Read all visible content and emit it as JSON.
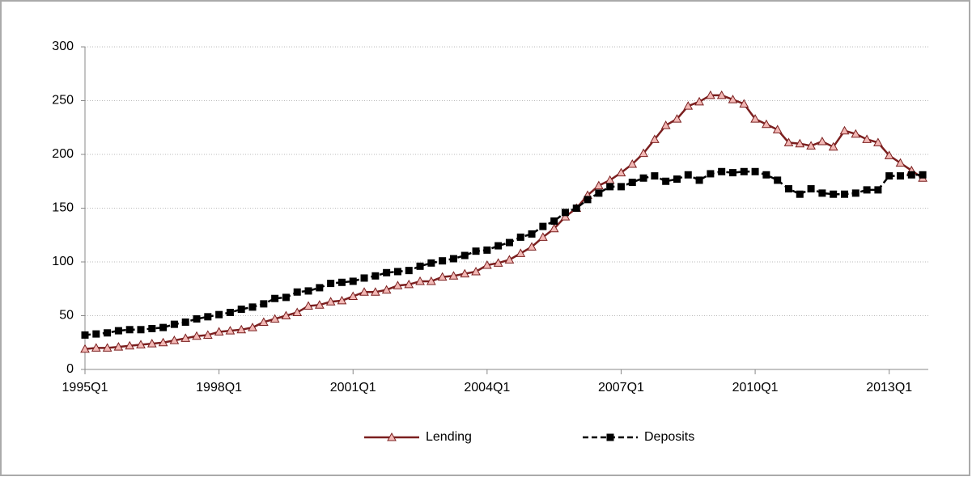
{
  "chart_data": {
    "type": "line",
    "categories": [
      "1995Q1",
      null,
      null,
      null,
      null,
      null,
      null,
      null,
      null,
      null,
      null,
      null,
      "1998Q1",
      null,
      null,
      null,
      null,
      null,
      null,
      null,
      null,
      null,
      null,
      null,
      "2001Q1",
      null,
      null,
      null,
      null,
      null,
      null,
      null,
      null,
      null,
      null,
      null,
      "2004Q1",
      null,
      null,
      null,
      null,
      null,
      null,
      null,
      null,
      null,
      null,
      null,
      "2007Q1",
      null,
      null,
      null,
      null,
      null,
      null,
      null,
      null,
      null,
      null,
      null,
      "2010Q1",
      null,
      null,
      null,
      null,
      null,
      null,
      null,
      null,
      null,
      null,
      null,
      "2013Q1",
      null,
      null,
      null
    ],
    "series": [
      {
        "name": "Lending",
        "color": "#7b1f1f",
        "marker": "triangle",
        "marker_fill": "#f2b8b5",
        "dashed": false,
        "values": [
          19,
          20,
          20,
          21,
          22,
          23,
          24,
          25,
          27,
          29,
          31,
          32,
          35,
          36,
          37,
          39,
          44,
          47,
          50,
          53,
          59,
          60,
          63,
          64,
          68,
          72,
          72,
          74,
          78,
          79,
          82,
          82,
          86,
          87,
          89,
          91,
          97,
          99,
          102,
          108,
          114,
          123,
          131,
          142,
          150,
          162,
          171,
          176,
          183,
          191,
          201,
          214,
          227,
          233,
          245,
          249,
          255,
          255,
          251,
          247,
          233,
          228,
          223,
          211,
          210,
          208,
          212,
          207,
          222,
          219,
          214,
          211,
          199,
          192,
          185,
          178
        ]
      },
      {
        "name": "Deposits",
        "color": "#000000",
        "marker": "square",
        "marker_fill": "#000000",
        "dashed": true,
        "values": [
          32,
          33,
          34,
          36,
          37,
          37,
          38,
          39,
          42,
          44,
          47,
          49,
          51,
          53,
          56,
          58,
          61,
          66,
          67,
          72,
          73,
          76,
          80,
          81,
          82,
          85,
          87,
          90,
          91,
          92,
          96,
          99,
          101,
          103,
          106,
          110,
          111,
          115,
          118,
          123,
          126,
          133,
          138,
          146,
          150,
          158,
          164,
          170,
          170,
          174,
          178,
          180,
          175,
          177,
          181,
          176,
          182,
          184,
          183,
          184,
          184,
          181,
          176,
          168,
          163,
          168,
          164,
          163,
          163,
          164,
          167,
          167,
          180,
          180,
          181,
          181
        ]
      }
    ],
    "ylim": [
      0,
      300
    ],
    "yticks": [
      0,
      50,
      100,
      150,
      200,
      250,
      300
    ],
    "grid": true
  }
}
